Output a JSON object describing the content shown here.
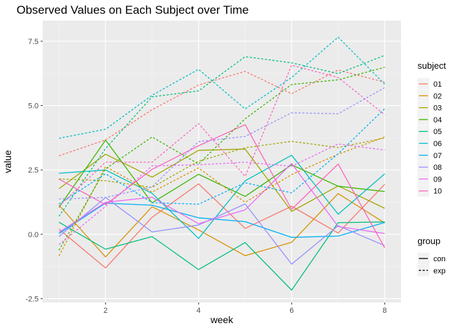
{
  "chart_data": {
    "type": "line",
    "title": "Observed Values on Each Subject over Time",
    "xlabel": "week",
    "ylabel": "value",
    "xlim": [
      0.65,
      8.35
    ],
    "ylim": [
      -2.65,
      8.3
    ],
    "x_ticks": [
      2,
      4,
      6,
      8
    ],
    "x_minor": [
      1,
      3,
      5,
      7
    ],
    "y_ticks": [
      -2.5,
      0,
      2.5,
      5,
      7.5
    ],
    "y_tick_labels": [
      "-2.5",
      "0.0",
      "2.5",
      "5.0",
      "7.5"
    ],
    "y_minor": [
      -1.25,
      1.25,
      3.75,
      6.25
    ],
    "grid": true,
    "panel_background": "#ebebeb",
    "x": [
      1,
      2,
      3,
      4,
      5,
      6,
      7,
      8
    ],
    "legend_subject": {
      "title": "subject",
      "position": "right",
      "entries": [
        {
          "label": "01",
          "color": "#F8766D"
        },
        {
          "label": "02",
          "color": "#D89000"
        },
        {
          "label": "03",
          "color": "#A3A500"
        },
        {
          "label": "04",
          "color": "#39B600"
        },
        {
          "label": "05",
          "color": "#00BF7D"
        },
        {
          "label": "06",
          "color": "#00BFC4"
        },
        {
          "label": "07",
          "color": "#00B0F6"
        },
        {
          "label": "08",
          "color": "#9590FF"
        },
        {
          "label": "09",
          "color": "#E76BF3"
        },
        {
          "label": "10",
          "color": "#FF62BC"
        }
      ]
    },
    "legend_group": {
      "title": "group",
      "entries": [
        {
          "label": "con",
          "dash": "solid"
        },
        {
          "label": "exp",
          "dash": "dashed"
        }
      ]
    },
    "series": [
      {
        "subject": "01",
        "group": "con",
        "values": [
          0.2,
          -1.31,
          0.66,
          1.96,
          0.23,
          1.09,
          0.05,
          1.94
        ]
      },
      {
        "subject": "02",
        "group": "con",
        "values": [
          1.13,
          -0.88,
          1.07,
          0.17,
          -0.83,
          -0.31,
          1.58,
          0.44
        ]
      },
      {
        "subject": "03",
        "group": "con",
        "values": [
          1.77,
          3.11,
          2.22,
          3.26,
          3.31,
          0.89,
          1.88,
          1.01
        ]
      },
      {
        "subject": "04",
        "group": "con",
        "values": [
          1.04,
          3.66,
          1.22,
          2.33,
          1.47,
          2.7,
          1.87,
          1.66
        ]
      },
      {
        "subject": "05",
        "group": "con",
        "values": [
          0.47,
          -0.58,
          -0.09,
          -1.37,
          -0.32,
          -2.17,
          0.45,
          0.48
        ]
      },
      {
        "subject": "06",
        "group": "con",
        "values": [
          2.37,
          2.5,
          1.59,
          -0.16,
          2.08,
          3.07,
          0.78,
          2.35
        ]
      },
      {
        "subject": "07",
        "group": "con",
        "values": [
          0.03,
          1.21,
          1.13,
          0.64,
          0.49,
          -0.12,
          -0.07,
          0.46
        ]
      },
      {
        "subject": "08",
        "group": "con",
        "values": [
          -0.09,
          1.43,
          0.09,
          0.36,
          1.18,
          -1.16,
          0.33,
          -0.44
        ]
      },
      {
        "subject": "09",
        "group": "con",
        "values": [
          0.08,
          1.24,
          1.44,
          0.41,
          0.95,
          2.75,
          0.3,
          0.03
        ]
      },
      {
        "subject": "10",
        "group": "con",
        "values": [
          2.14,
          1.15,
          2.52,
          3.44,
          4.26,
          0.97,
          2.73,
          -0.53
        ]
      },
      {
        "subject": "01",
        "group": "exp",
        "values": [
          3.05,
          3.67,
          4.84,
          5.8,
          6.33,
          5.46,
          6.38,
          5.91
        ]
      },
      {
        "subject": "02",
        "group": "exp",
        "values": [
          -0.84,
          2.63,
          1.64,
          2.58,
          1.24,
          2.32,
          3.11,
          3.78
        ]
      },
      {
        "subject": "03",
        "group": "exp",
        "values": [
          2.15,
          2.08,
          1.82,
          2.84,
          3.36,
          3.61,
          3.37,
          3.74
        ]
      },
      {
        "subject": "04",
        "group": "exp",
        "values": [
          -0.62,
          2.54,
          3.78,
          2.73,
          4.49,
          5.82,
          6.0,
          6.49
        ]
      },
      {
        "subject": "05",
        "group": "exp",
        "values": [
          0.7,
          3.33,
          5.34,
          5.57,
          6.9,
          6.66,
          6.24,
          6.95
        ]
      },
      {
        "subject": "06",
        "group": "exp",
        "values": [
          3.73,
          4.08,
          5.4,
          6.41,
          4.87,
          6.09,
          7.66,
          5.83
        ]
      },
      {
        "subject": "07",
        "group": "exp",
        "values": [
          1.18,
          2.35,
          1.23,
          1.17,
          2.0,
          1.61,
          3.13,
          4.88
        ]
      },
      {
        "subject": "08",
        "group": "exp",
        "values": [
          1.37,
          1.43,
          1.84,
          3.6,
          3.8,
          4.72,
          4.68,
          5.7
        ]
      },
      {
        "subject": "09",
        "group": "exp",
        "values": [
          -0.4,
          1.08,
          2.66,
          2.7,
          2.8,
          2.64,
          3.51,
          3.27
        ]
      },
      {
        "subject": "10",
        "group": "exp",
        "values": [
          1.09,
          2.8,
          2.8,
          4.3,
          2.25,
          6.57,
          6.09,
          4.64
        ]
      }
    ]
  }
}
